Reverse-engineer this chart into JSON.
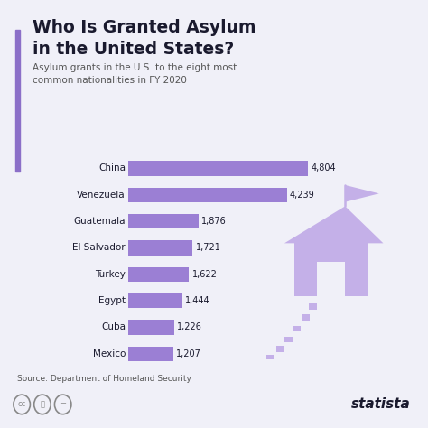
{
  "title_line1": "Who Is Granted Asylum",
  "title_line2": "in the United States?",
  "subtitle": "Asylum grants in the U.S. to the eight most\ncommon nationalities in FY 2020",
  "source": "Source: Department of Homeland Security",
  "categories": [
    "China",
    "Venezuela",
    "Guatemala",
    "El Salvador",
    "Turkey",
    "Egypt",
    "Cuba",
    "Mexico"
  ],
  "values": [
    4804,
    4239,
    1876,
    1721,
    1622,
    1444,
    1226,
    1207
  ],
  "bar_color": "#9b7fd4",
  "background_color": "#f0f0f8",
  "title_color": "#1a1a2e",
  "subtitle_color": "#555555",
  "label_color": "#1a1a2e",
  "value_color": "#1a1a2e",
  "left_accent_color": "#8b6fc8",
  "icon_color": "#c4b0e8",
  "xlim": [
    0,
    5500
  ],
  "statista_color": "#1a1a2e"
}
